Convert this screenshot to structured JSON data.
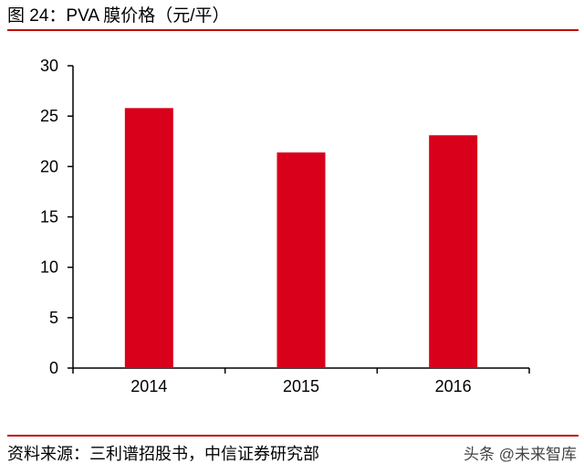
{
  "figure": {
    "title": "图 24：PVA 膜价格（元/平）",
    "source": "资料来源：三利谱招股书，中信证券研究部",
    "watermark": "头条 @未来智库"
  },
  "chart_data": {
    "type": "bar",
    "title": "",
    "xlabel": "",
    "ylabel": "",
    "categories": [
      "2014",
      "2015",
      "2016"
    ],
    "values": [
      25.8,
      21.4,
      23.1
    ],
    "ylim": [
      0,
      30
    ],
    "yticks": [
      0,
      5,
      10,
      15,
      20,
      25,
      30
    ],
    "bar_color": "#d9001b",
    "grid": false,
    "legend": "none"
  },
  "colors": {
    "accent_rule": "#c00000",
    "axis": "#000000"
  }
}
